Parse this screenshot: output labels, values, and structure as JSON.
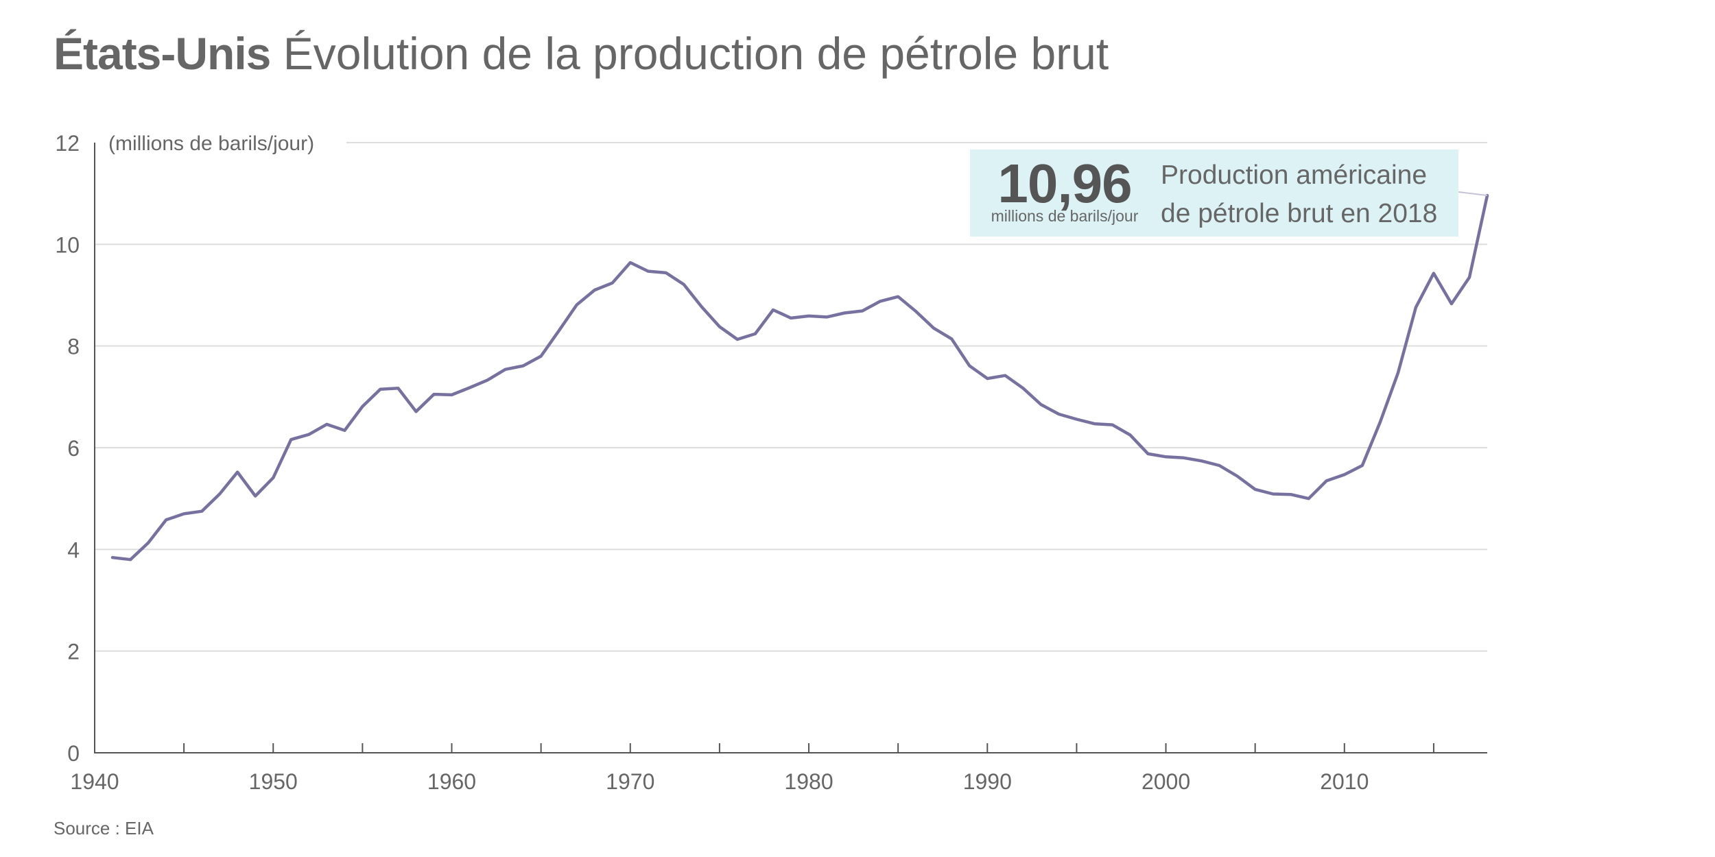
{
  "title": {
    "bold": "États-Unis",
    "rest": "Évolution de la production de pétrole brut"
  },
  "source": "Source : EIA",
  "callout": {
    "value": "10,96",
    "unit": "millions de barils/jour",
    "line1": "Production américaine",
    "line2": "de pétrole brut en 2018"
  },
  "colors": {
    "line": "#7771a0",
    "grid": "#dddddd",
    "axis": "#555555",
    "callout_bg": "#ddf2f4",
    "text": "#666666"
  },
  "chart_data": {
    "type": "line",
    "title": "États-Unis Évolution de la production de pétrole brut",
    "xlabel": "",
    "ylabel": "(millions de barils/jour)",
    "xlim": [
      1940,
      2018
    ],
    "ylim": [
      0,
      12
    ],
    "yticks": [
      0,
      2,
      4,
      6,
      8,
      10,
      12
    ],
    "xticks_labeled": [
      1940,
      1950,
      1960,
      1970,
      1980,
      1990,
      2000,
      2010
    ],
    "xticks_minor": [
      1945,
      1955,
      1965,
      1975,
      1985,
      1995,
      2005,
      2015
    ],
    "grid": true,
    "series": [
      {
        "name": "Production de pétrole brut",
        "x": [
          1941,
          1942,
          1943,
          1944,
          1945,
          1946,
          1947,
          1948,
          1949,
          1950,
          1951,
          1952,
          1953,
          1954,
          1955,
          1956,
          1957,
          1958,
          1959,
          1960,
          1961,
          1962,
          1963,
          1964,
          1965,
          1966,
          1967,
          1968,
          1969,
          1970,
          1971,
          1972,
          1973,
          1974,
          1975,
          1976,
          1977,
          1978,
          1979,
          1980,
          1981,
          1982,
          1983,
          1984,
          1985,
          1986,
          1987,
          1988,
          1989,
          1990,
          1991,
          1992,
          1993,
          1994,
          1995,
          1996,
          1997,
          1998,
          1999,
          2000,
          2001,
          2002,
          2003,
          2004,
          2005,
          2006,
          2007,
          2008,
          2009,
          2010,
          2011,
          2012,
          2013,
          2014,
          2015,
          2016,
          2017,
          2018
        ],
        "values": [
          3.84,
          3.8,
          4.13,
          4.58,
          4.7,
          4.75,
          5.09,
          5.52,
          5.05,
          5.41,
          6.16,
          6.26,
          6.46,
          6.34,
          6.81,
          7.15,
          7.17,
          6.71,
          7.05,
          7.04,
          7.18,
          7.33,
          7.54,
          7.61,
          7.8,
          8.3,
          8.81,
          9.1,
          9.24,
          9.64,
          9.47,
          9.44,
          9.21,
          8.77,
          8.38,
          8.13,
          8.24,
          8.71,
          8.55,
          8.59,
          8.57,
          8.65,
          8.69,
          8.88,
          8.97,
          8.68,
          8.35,
          8.14,
          7.61,
          7.36,
          7.42,
          7.17,
          6.85,
          6.66,
          6.56,
          6.47,
          6.45,
          6.25,
          5.88,
          5.82,
          5.8,
          5.74,
          5.65,
          5.44,
          5.18,
          5.09,
          5.08,
          5.0,
          5.35,
          5.47,
          5.65,
          6.5,
          7.47,
          8.76,
          9.43,
          8.83,
          9.35,
          10.96
        ]
      }
    ],
    "annotations": [
      {
        "x": 2018,
        "y": 10.96,
        "text": "10,96 millions de barils/jour — Production américaine de pétrole brut en 2018"
      }
    ]
  }
}
